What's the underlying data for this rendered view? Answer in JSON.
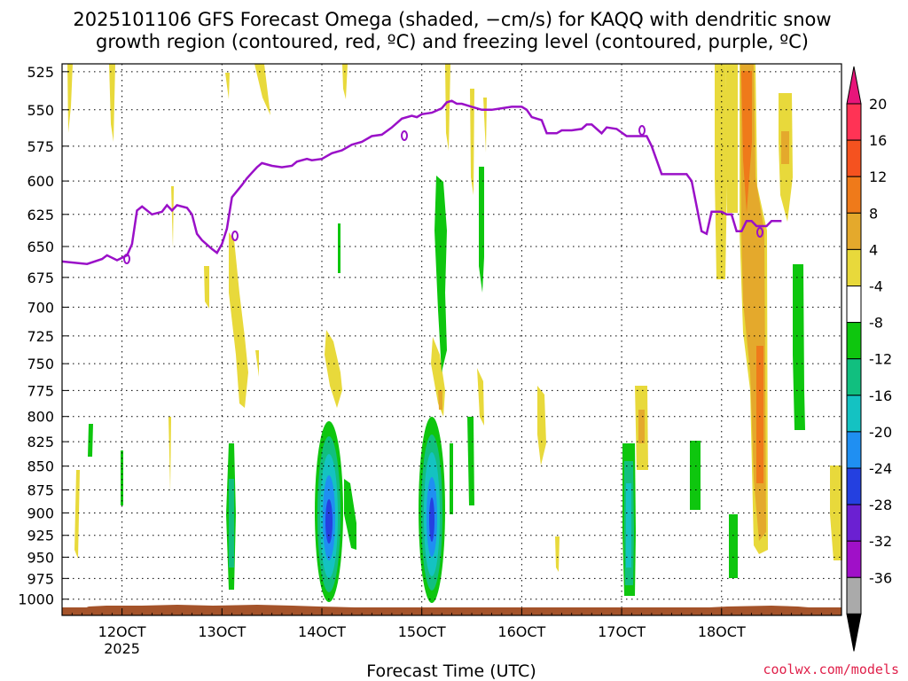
{
  "chart_data": {
    "type": "heatmap",
    "title_line1": "2025101106 GFS Forecast Omega (shaded, −cm/s) for KAQQ with dendritic snow",
    "title_line2": "growth region (contoured, red, ºC) and freezing level (contoured, purple, ºC)",
    "xlabel": "Forecast Time (UTC)",
    "x_unit": "forecast hour",
    "xlim": [
      6,
      162
    ],
    "x_ticks": [
      {
        "hour": 18,
        "label": "12OCT"
      },
      {
        "hour": 38,
        "label": "13OCT"
      },
      {
        "hour": 58,
        "label": "14OCT"
      },
      {
        "hour": 78,
        "label": "15OCT"
      },
      {
        "hour": 98,
        "label": "16OCT"
      },
      {
        "hour": 118,
        "label": "17OCT"
      },
      {
        "hour": 138,
        "label": "18OCT"
      }
    ],
    "year_label": "2025",
    "year_hour": 18,
    "y_unit": "hPa",
    "y_scale": "log",
    "ylim": [
      1020,
      520
    ],
    "y_ticks": [
      525,
      550,
      575,
      600,
      625,
      650,
      675,
      700,
      725,
      750,
      775,
      800,
      825,
      850,
      875,
      900,
      925,
      950,
      975,
      1000
    ],
    "colorbar": {
      "levels": [
        "20",
        "16",
        "12",
        "8",
        "4",
        "-4",
        "-8",
        "-12",
        "-16",
        "-20",
        "-24",
        "-28",
        "-32",
        "-36"
      ],
      "colors": [
        "#ff3355",
        "#f5521f",
        "#ef7a1a",
        "#e4a92c",
        "#e8d93b",
        "#ffffff",
        "#0ec60e",
        "#11bf7f",
        "#14c2c2",
        "#1f8ff2",
        "#2440e0",
        "#6b20d2",
        "#a010c8",
        "#aaaaaa"
      ],
      "top_color": "#e8157a",
      "bottom_color": "#000000"
    },
    "freezing_level": {
      "color": "#9a10c8",
      "points": [
        [
          6,
          662
        ],
        [
          11,
          664
        ],
        [
          14,
          660
        ],
        [
          15,
          657
        ],
        [
          17,
          661
        ],
        [
          19,
          657
        ],
        [
          20,
          648
        ],
        [
          21,
          622
        ],
        [
          22,
          619
        ],
        [
          24,
          625
        ],
        [
          26,
          623
        ],
        [
          27,
          618
        ],
        [
          28,
          622
        ],
        [
          29,
          618
        ],
        [
          31,
          620
        ],
        [
          32,
          625
        ],
        [
          33,
          640
        ],
        [
          34,
          645
        ],
        [
          36,
          652
        ],
        [
          37,
          655
        ],
        [
          38,
          648
        ],
        [
          39,
          636
        ],
        [
          40,
          612
        ],
        [
          42,
          603
        ],
        [
          43,
          598
        ],
        [
          44,
          594
        ],
        [
          45,
          590
        ],
        [
          46,
          587
        ],
        [
          48,
          589
        ],
        [
          50,
          590
        ],
        [
          52,
          589
        ],
        [
          53,
          586
        ],
        [
          55,
          584
        ],
        [
          56,
          585
        ],
        [
          58,
          584
        ],
        [
          60,
          580
        ],
        [
          62,
          578
        ],
        [
          64,
          574
        ],
        [
          66,
          572
        ],
        [
          68,
          568
        ],
        [
          70,
          567
        ],
        [
          72,
          562
        ],
        [
          74,
          556
        ],
        [
          76,
          554
        ],
        [
          77,
          555
        ],
        [
          78,
          553
        ],
        [
          80,
          552
        ],
        [
          82,
          549
        ],
        [
          83,
          545
        ],
        [
          84,
          544
        ],
        [
          85,
          546
        ],
        [
          86,
          546
        ],
        [
          88,
          548
        ],
        [
          90,
          550
        ],
        [
          92,
          550
        ],
        [
          94,
          549
        ],
        [
          96,
          548
        ],
        [
          98,
          548
        ],
        [
          99,
          550
        ],
        [
          100,
          555
        ],
        [
          102,
          557
        ],
        [
          103,
          566
        ],
        [
          105,
          566
        ],
        [
          106,
          564
        ],
        [
          108,
          564
        ],
        [
          110,
          563
        ],
        [
          111,
          560
        ],
        [
          112,
          560
        ],
        [
          114,
          566
        ],
        [
          115,
          562
        ],
        [
          117,
          563
        ],
        [
          119,
          568
        ],
        [
          120,
          568
        ],
        [
          123,
          568
        ],
        [
          124,
          575
        ],
        [
          126,
          595
        ],
        [
          128,
          595
        ],
        [
          131,
          595
        ],
        [
          132,
          600
        ],
        [
          134,
          638
        ],
        [
          135,
          640
        ],
        [
          136,
          623
        ],
        [
          138,
          623
        ],
        [
          139,
          625
        ],
        [
          140,
          625
        ],
        [
          141,
          638
        ],
        [
          142,
          638
        ],
        [
          143,
          630
        ],
        [
          144,
          630
        ],
        [
          145,
          634
        ],
        [
          147,
          634
        ],
        [
          148,
          630
        ],
        [
          150,
          630
        ]
      ]
    }
  }
}
